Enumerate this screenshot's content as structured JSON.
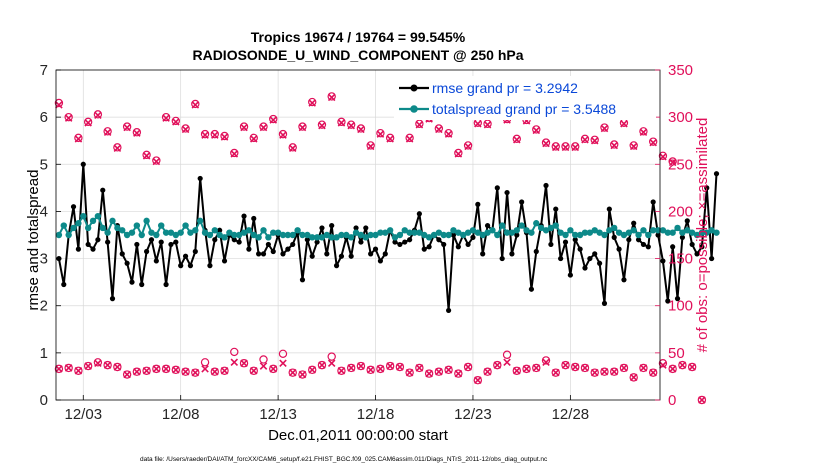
{
  "chart_data": {
    "type": "line",
    "title_line1": "Tropics 19674 / 19764 = 99.545%",
    "title_line2": "RADIOSONDE_U_WIND_COMPONENT @ 250 hPa",
    "xlabel": "Dec.01,2011 00:00:00 start",
    "ylabel_left": "rmse and totalspread",
    "ylabel_right": "# of obs: o=possible; ×=assimilated",
    "footer": "data file: /Users/raeder/DAI/ATM_forcXX/CAM6_setup/f.e21.FHIST_BGC.f09_025.CAM6assim.011/Diags_NTrS_2011-12/obs_diag_output.nc",
    "x_range": [
      1.6,
      32.6
    ],
    "y_left_range": [
      0,
      7
    ],
    "y_right_range": [
      0,
      350
    ],
    "x_ticks": [
      3,
      8,
      13,
      18,
      23,
      28
    ],
    "x_tick_labels": [
      "12/03",
      "12/08",
      "12/13",
      "12/18",
      "12/23",
      "12/28"
    ],
    "y_left_ticks": [
      "0",
      "1",
      "2",
      "3",
      "4",
      "5",
      "6",
      "7"
    ],
    "y_right_ticks": [
      "0",
      "50",
      "100",
      "150",
      "200",
      "250",
      "300",
      "350"
    ],
    "colors": {
      "rmse": "#000000",
      "spread": "#0d8a8a",
      "obs": "#e0105a",
      "legend_text": "#0a48d8"
    },
    "legend": [
      {
        "name": "rmse grand pr = 3.2942",
        "color": "#000000"
      },
      {
        "name": "totalspread grand pr = 3.5488",
        "color": "#0d8a8a"
      }
    ],
    "series": [
      {
        "name": "rmse",
        "x_start": 1.75,
        "x_step": 0.25,
        "values": [
          3.0,
          2.45,
          3.5,
          4.1,
          3.2,
          5.0,
          3.3,
          3.2,
          3.4,
          4.45,
          3.35,
          2.15,
          3.7,
          3.1,
          2.9,
          2.5,
          3.3,
          2.45,
          3.15,
          3.4,
          2.95,
          3.35,
          2.45,
          3.3,
          3.35,
          2.85,
          3.05,
          2.85,
          3.15,
          4.7,
          3.6,
          2.85,
          3.4,
          3.6,
          2.95,
          3.5,
          3.4,
          3.35,
          3.9,
          3.2,
          3.85,
          3.1,
          3.1,
          3.3,
          3.15,
          3.5,
          3.1,
          3.2,
          3.3,
          3.55,
          2.55,
          3.4,
          3.05,
          3.35,
          3.65,
          3.1,
          3.7,
          2.85,
          3.05,
          3.45,
          3.05,
          3.65,
          3.35,
          3.65,
          3.1,
          3.2,
          2.95,
          3.1,
          3.6,
          3.35,
          3.3,
          3.35,
          3.4,
          3.6,
          3.95,
          3.2,
          3.25,
          3.5,
          3.4,
          3.3,
          1.9,
          3.5,
          3.25,
          3.5,
          3.3,
          3.45,
          4.15,
          3.1,
          3.7,
          3.6,
          4.5,
          3.0,
          4.4,
          3.1,
          3.5,
          4.2,
          3.55,
          2.35,
          3.15,
          3.7,
          4.55,
          3.3,
          4.05,
          3.0,
          3.35,
          2.65,
          3.4,
          3.2,
          2.8,
          3.0,
          3.1,
          2.9,
          2.05,
          4.05,
          3.45,
          3.2,
          2.55,
          3.4,
          3.75,
          3.4,
          3.3,
          3.25,
          4.2,
          3.5,
          2.95,
          2.1,
          3.25,
          2.15,
          3.45,
          3.8,
          3.3,
          3.1,
          3.25,
          4.5,
          3.0,
          4.8
        ]
      },
      {
        "name": "totalspread",
        "x_start": 1.75,
        "x_step": 0.25,
        "values": [
          3.5,
          3.7,
          3.5,
          3.65,
          3.75,
          3.9,
          3.65,
          3.8,
          3.9,
          3.65,
          3.55,
          3.8,
          3.65,
          3.6,
          3.5,
          3.55,
          3.7,
          3.5,
          3.8,
          3.55,
          3.5,
          3.7,
          3.55,
          3.55,
          3.5,
          3.55,
          3.7,
          3.55,
          3.6,
          3.8,
          3.55,
          3.5,
          3.6,
          3.5,
          3.45,
          3.55,
          3.5,
          3.5,
          3.55,
          3.6,
          3.5,
          3.45,
          3.6,
          3.45,
          3.55,
          3.55,
          3.5,
          3.5,
          3.5,
          3.6,
          3.5,
          3.5,
          3.45,
          3.45,
          3.45,
          3.5,
          3.45,
          3.45,
          3.5,
          3.5,
          3.45,
          3.55,
          3.5,
          3.45,
          3.5,
          3.5,
          3.55,
          3.55,
          3.6,
          3.45,
          3.5,
          3.6,
          3.55,
          3.55,
          3.55,
          3.5,
          3.45,
          3.5,
          3.55,
          3.5,
          3.5,
          3.6,
          3.55,
          3.5,
          3.55,
          3.6,
          3.55,
          3.5,
          3.55,
          3.6,
          3.5,
          3.7,
          3.55,
          3.55,
          3.6,
          3.7,
          3.6,
          3.55,
          3.75,
          3.65,
          3.6,
          3.65,
          3.7,
          3.55,
          3.5,
          3.6,
          3.5,
          3.5,
          3.55,
          3.55,
          3.6,
          3.55,
          3.5,
          3.6,
          3.65,
          3.55,
          3.5,
          3.55,
          3.6,
          3.5,
          3.6,
          3.5,
          3.6,
          3.6,
          3.6,
          3.55,
          3.55,
          3.65,
          3.55,
          3.6,
          3.55,
          3.5,
          3.55,
          3.55,
          3.6,
          3.55
        ]
      },
      {
        "name": "obs_possible",
        "axis": "right",
        "x_start": 1.75,
        "x_step": 0.5,
        "values": [
          315,
          300,
          278,
          295,
          303,
          285,
          268,
          290,
          284,
          260,
          254,
          300,
          296,
          288,
          314,
          282,
          282,
          280,
          262,
          290,
          278,
          290,
          298,
          282,
          268,
          290,
          316,
          292,
          322,
          295,
          292,
          288,
          270,
          283,
          278,
          306,
          278,
          293,
          299,
          288,
          283,
          262,
          270,
          294,
          293,
          306,
          298,
          277,
          297,
          287,
          273,
          269,
          269,
          269,
          277,
          276,
          289,
          271,
          294,
          270,
          285,
          274,
          259,
          253
        ]
      },
      {
        "name": "obs_assimilated",
        "axis": "right",
        "x_start": 1.75,
        "x_step": 0.5,
        "values": [
          313,
          299,
          277,
          294,
          302,
          284,
          267,
          289,
          283,
          259,
          253,
          299,
          295,
          287,
          313,
          281,
          281,
          279,
          261,
          289,
          277,
          289,
          297,
          281,
          267,
          289,
          315,
          291,
          321,
          294,
          291,
          287,
          269,
          282,
          277,
          305,
          277,
          292,
          298,
          287,
          282,
          261,
          269,
          293,
          292,
          305,
          297,
          276,
          296,
          286,
          272,
          268,
          268,
          268,
          276,
          275,
          288,
          270,
          293,
          269,
          284,
          273,
          258,
          252
        ]
      },
      {
        "name": "obs_possible_low",
        "axis": "right",
        "x_start": 1.75,
        "x_step": 0.5,
        "values": [
          33,
          34,
          31,
          36,
          40,
          37,
          35,
          27,
          30,
          31,
          33,
          33,
          32,
          30,
          29,
          40,
          30,
          31,
          51,
          39,
          31,
          43,
          33,
          49,
          29,
          27,
          32,
          37,
          46,
          31,
          34,
          36,
          32,
          33,
          36,
          35,
          29,
          34,
          28,
          30,
          32,
          28,
          35,
          21,
          30,
          37,
          48,
          31,
          33,
          34,
          42,
          29,
          37,
          35,
          34,
          29,
          30,
          30,
          34,
          24,
          34,
          29,
          39,
          33,
          37,
          35,
          0
        ]
      },
      {
        "name": "obs_assimilated_low",
        "axis": "right",
        "x_start": 1.75,
        "x_step": 0.5,
        "values": [
          33,
          34,
          31,
          36,
          39,
          37,
          35,
          27,
          30,
          31,
          33,
          33,
          32,
          30,
          29,
          33,
          30,
          31,
          40,
          39,
          31,
          36,
          33,
          39,
          29,
          27,
          32,
          37,
          39,
          31,
          34,
          36,
          32,
          33,
          36,
          35,
          29,
          34,
          28,
          30,
          32,
          28,
          35,
          21,
          30,
          37,
          40,
          31,
          33,
          34,
          40,
          29,
          37,
          35,
          34,
          29,
          30,
          30,
          34,
          24,
          34,
          29,
          37,
          33,
          37,
          35,
          0
        ]
      }
    ]
  }
}
